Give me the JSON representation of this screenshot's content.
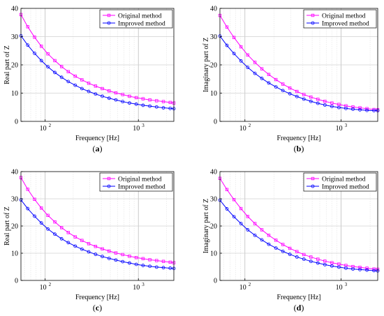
{
  "chart_data": [
    {
      "type": "line",
      "panel_label": "(a)",
      "xlabel": "Frequency [Hz]",
      "ylabel": "Real part of Z",
      "xscale": "log",
      "xlim": [
        55,
        2400
      ],
      "ylim": [
        0,
        40
      ],
      "yticks": [
        0,
        10,
        20,
        30,
        40
      ],
      "xticks": [
        100,
        1000
      ],
      "xtick_labels": [
        "10",
        "10"
      ],
      "xtick_exponents": [
        "2",
        "3"
      ],
      "grid": true,
      "legend": "top-right",
      "x": [
        55,
        65,
        77,
        91,
        107,
        127,
        150,
        177,
        210,
        248,
        293,
        347,
        410,
        485,
        573,
        678,
        802,
        948,
        1121,
        1326,
        1568,
        1854,
        2193,
        2400
      ],
      "series": [
        {
          "name": "Original method",
          "color": "#ff00ff",
          "marker": "square",
          "values": [
            37.8,
            33.5,
            29.8,
            26.6,
            23.9,
            21.5,
            19.4,
            17.6,
            16.0,
            14.7,
            13.5,
            12.5,
            11.6,
            10.8,
            10.1,
            9.5,
            8.9,
            8.4,
            8.0,
            7.6,
            7.3,
            7.0,
            6.7,
            6.5
          ]
        },
        {
          "name": "Improved method",
          "color": "#0000ff",
          "marker": "circle",
          "values": [
            30.3,
            27.0,
            24.1,
            21.5,
            19.3,
            17.3,
            15.6,
            14.1,
            12.8,
            11.6,
            10.6,
            9.7,
            8.9,
            8.2,
            7.6,
            7.0,
            6.5,
            6.1,
            5.7,
            5.4,
            5.1,
            4.8,
            4.6,
            4.5
          ]
        }
      ]
    },
    {
      "type": "line",
      "panel_label": "(b)",
      "xlabel": "Frequency [Hz]",
      "ylabel": "Imaginary part of Z",
      "xscale": "log",
      "xlim": [
        55,
        2400
      ],
      "ylim": [
        0,
        40
      ],
      "yticks": [
        0,
        10,
        20,
        30,
        40
      ],
      "xticks": [
        100,
        1000
      ],
      "xtick_labels": [
        "10",
        "10"
      ],
      "xtick_exponents": [
        "2",
        "3"
      ],
      "grid": true,
      "legend": "top-right",
      "x": [
        55,
        65,
        77,
        91,
        107,
        127,
        150,
        177,
        210,
        248,
        293,
        347,
        410,
        485,
        573,
        678,
        802,
        948,
        1121,
        1326,
        1568,
        1854,
        2193,
        2400
      ],
      "series": [
        {
          "name": "Original method",
          "color": "#ff00ff",
          "marker": "square",
          "values": [
            37.5,
            33.4,
            29.7,
            26.4,
            23.5,
            20.9,
            18.6,
            16.6,
            14.8,
            13.2,
            11.8,
            10.6,
            9.5,
            8.6,
            7.8,
            7.1,
            6.5,
            6.0,
            5.5,
            5.1,
            4.8,
            4.5,
            4.2,
            4.1
          ]
        },
        {
          "name": "Improved method",
          "color": "#0000ff",
          "marker": "circle",
          "values": [
            30.2,
            26.9,
            24.0,
            21.4,
            19.1,
            17.0,
            15.2,
            13.6,
            12.2,
            10.9,
            9.8,
            8.8,
            7.9,
            7.1,
            6.4,
            5.8,
            5.3,
            4.9,
            4.6,
            4.3,
            4.1,
            3.9,
            3.8,
            3.8
          ]
        }
      ]
    },
    {
      "type": "line",
      "panel_label": "(c)",
      "xlabel": "Frequency [Hz]",
      "ylabel": "Real part of Z",
      "xscale": "log",
      "xlim": [
        55,
        2400
      ],
      "ylim": [
        0,
        40
      ],
      "yticks": [
        0,
        10,
        20,
        30,
        40
      ],
      "xticks": [
        100,
        1000
      ],
      "xtick_labels": [
        "10",
        "10"
      ],
      "xtick_exponents": [
        "2",
        "3"
      ],
      "grid": true,
      "legend": "top-right",
      "x": [
        55,
        65,
        77,
        91,
        107,
        127,
        150,
        177,
        210,
        248,
        293,
        347,
        410,
        485,
        573,
        678,
        802,
        948,
        1121,
        1326,
        1568,
        1854,
        2193,
        2400
      ],
      "series": [
        {
          "name": "Original method",
          "color": "#ff00ff",
          "marker": "square",
          "values": [
            37.8,
            33.5,
            29.8,
            26.6,
            23.9,
            21.5,
            19.4,
            17.6,
            16.0,
            14.7,
            13.5,
            12.5,
            11.6,
            10.8,
            10.1,
            9.5,
            8.9,
            8.4,
            8.0,
            7.6,
            7.3,
            7.0,
            6.7,
            6.5
          ]
        },
        {
          "name": "Improved method",
          "color": "#0000ff",
          "marker": "circle",
          "values": [
            29.6,
            26.4,
            23.6,
            21.1,
            18.9,
            17.0,
            15.3,
            13.9,
            12.6,
            11.5,
            10.5,
            9.6,
            8.8,
            8.1,
            7.5,
            6.9,
            6.4,
            5.9,
            5.5,
            5.2,
            4.9,
            4.7,
            4.5,
            4.4
          ]
        }
      ]
    },
    {
      "type": "line",
      "panel_label": "(d)",
      "xlabel": "Frequency [Hz]",
      "ylabel": "Imaginary part of Z",
      "xscale": "log",
      "xlim": [
        55,
        2400
      ],
      "ylim": [
        0,
        40
      ],
      "yticks": [
        0,
        10,
        20,
        30,
        40
      ],
      "xticks": [
        100,
        1000
      ],
      "xtick_labels": [
        "10",
        "10"
      ],
      "xtick_exponents": [
        "2",
        "3"
      ],
      "grid": true,
      "legend": "top-right",
      "x": [
        55,
        65,
        77,
        91,
        107,
        127,
        150,
        177,
        210,
        248,
        293,
        347,
        410,
        485,
        573,
        678,
        802,
        948,
        1121,
        1326,
        1568,
        1854,
        2193,
        2400
      ],
      "series": [
        {
          "name": "Original method",
          "color": "#ff00ff",
          "marker": "square",
          "values": [
            37.5,
            33.4,
            29.7,
            26.4,
            23.5,
            20.9,
            18.6,
            16.6,
            14.8,
            13.2,
            11.8,
            10.6,
            9.5,
            8.6,
            7.8,
            7.1,
            6.5,
            6.0,
            5.5,
            5.1,
            4.8,
            4.5,
            4.2,
            4.1
          ]
        },
        {
          "name": "Improved method",
          "color": "#0000ff",
          "marker": "circle",
          "values": [
            29.5,
            26.3,
            23.4,
            20.9,
            18.6,
            16.6,
            14.9,
            13.3,
            11.9,
            10.7,
            9.6,
            8.6,
            7.8,
            7.0,
            6.4,
            5.8,
            5.3,
            4.9,
            4.5,
            4.2,
            4.0,
            3.8,
            3.6,
            3.5
          ]
        }
      ]
    }
  ]
}
